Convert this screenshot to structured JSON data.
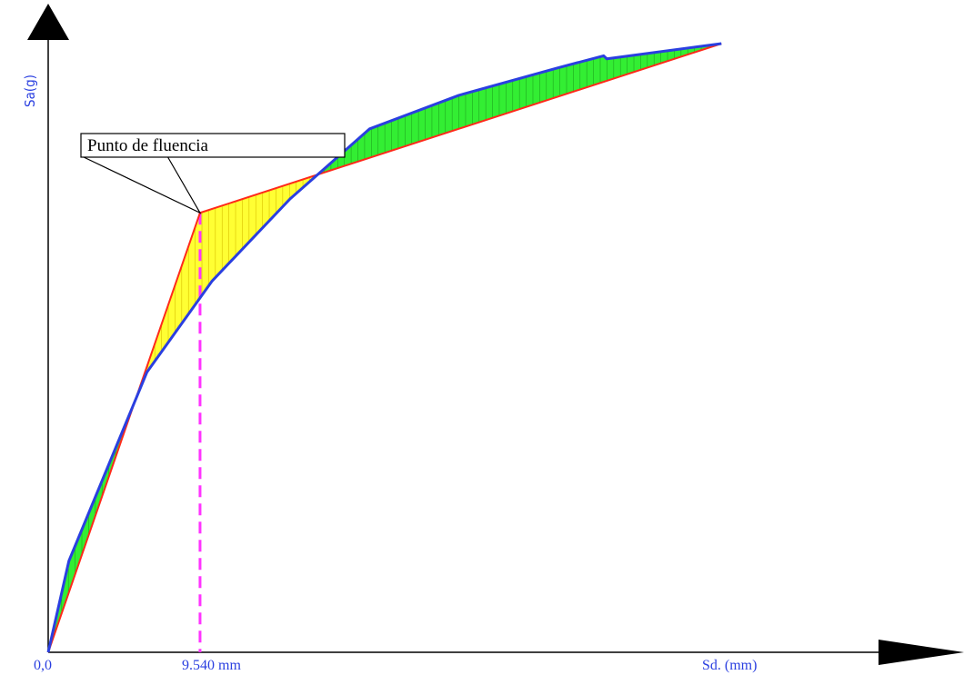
{
  "chart_data": {
    "type": "line",
    "title": "",
    "xlabel": "Sd. (mm)",
    "ylabel": "Sa(g)",
    "origin_label": "0,0",
    "x_marker_label": "9.540 mm",
    "annotation": "Punto de fluencia",
    "xlim": [
      0,
      45
    ],
    "ylim": [
      0,
      1
    ],
    "yield_point": {
      "x": 9.54,
      "y": 0.722
    },
    "series": [
      {
        "key": "capacity",
        "color": "#2a3fe0",
        "x": [
          0,
          1.3,
          6.2,
          10.3,
          15.2,
          20.2,
          25.8,
          32.0,
          34.9,
          35.1,
          42.3
        ],
        "y": [
          0,
          0.15,
          0.46,
          0.61,
          0.745,
          0.86,
          0.915,
          0.96,
          0.98,
          0.975,
          1.0
        ]
      },
      {
        "key": "bilinear",
        "color": "#ff2a1a",
        "x": [
          0,
          9.54,
          42.3
        ],
        "y": [
          0,
          0.722,
          1.0
        ]
      }
    ],
    "fill_colors": {
      "yellow": "#ffff33",
      "green": "#33ee33"
    },
    "marker_color": "#ff33ff",
    "grid": false,
    "legend": "none"
  }
}
